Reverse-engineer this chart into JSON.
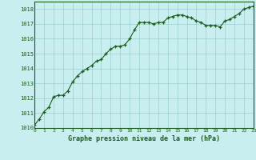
{
  "x": [
    0,
    0.5,
    1,
    1.5,
    2,
    2.5,
    3,
    3.5,
    4,
    4.5,
    5,
    5.5,
    6,
    6.5,
    7,
    7.5,
    8,
    8.5,
    9,
    9.5,
    10,
    10.5,
    11,
    11.5,
    12,
    12.5,
    13,
    13.5,
    14,
    14.5,
    15,
    15.5,
    16,
    16.5,
    17,
    17.5,
    18,
    18.5,
    19,
    19.5,
    20,
    20.5,
    21,
    21.5,
    22,
    22.5,
    23
  ],
  "y": [
    1010.2,
    1010.6,
    1011.1,
    1011.4,
    1012.1,
    1012.2,
    1012.2,
    1012.5,
    1013.1,
    1013.5,
    1013.8,
    1014.0,
    1014.2,
    1014.5,
    1014.6,
    1015.0,
    1015.3,
    1015.5,
    1015.5,
    1015.6,
    1016.0,
    1016.6,
    1017.1,
    1017.1,
    1017.1,
    1017.0,
    1017.1,
    1017.1,
    1017.4,
    1017.5,
    1017.6,
    1017.6,
    1017.5,
    1017.4,
    1017.2,
    1017.1,
    1016.9,
    1016.9,
    1016.9,
    1016.8,
    1017.2,
    1017.3,
    1017.5,
    1017.7,
    1018.0,
    1018.1,
    1018.2
  ],
  "line_color": "#1a5c1a",
  "marker_color": "#1a5c1a",
  "bg_color": "#c8eef0",
  "grid_color": "#9ecece",
  "xlabel": "Graphe pression niveau de la mer (hPa)",
  "xlabel_color": "#1a5c1a",
  "tick_color": "#1a5c1a",
  "ylim": [
    1010,
    1018.5
  ],
  "yticks": [
    1010,
    1011,
    1012,
    1013,
    1014,
    1015,
    1016,
    1017,
    1018
  ],
  "xticks": [
    0,
    1,
    2,
    3,
    4,
    5,
    6,
    7,
    8,
    9,
    10,
    11,
    12,
    13,
    14,
    15,
    16,
    17,
    18,
    19,
    20,
    21,
    22,
    23
  ],
  "xlim": [
    0,
    23
  ]
}
